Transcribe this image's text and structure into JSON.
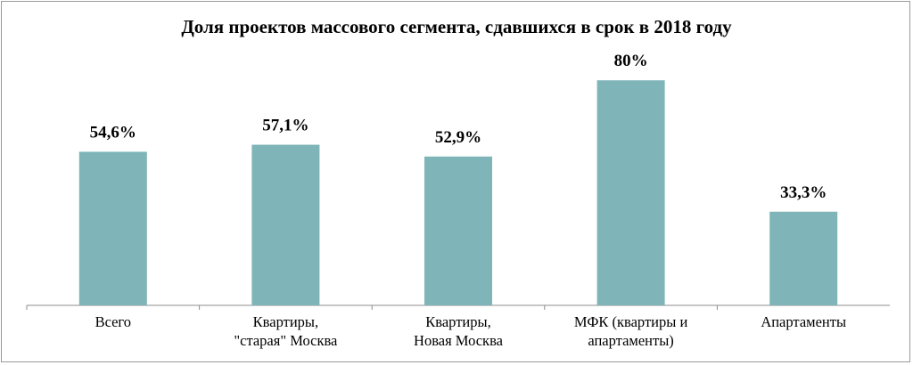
{
  "chart_data": {
    "type": "bar",
    "title": "Доля проектов массового сегмента, сдавшихся в срок в 2018 году",
    "categories": [
      [
        "Всего"
      ],
      [
        "Квартиры,",
        "\"старая\" Москва"
      ],
      [
        "Квартиры,",
        "Новая Москва"
      ],
      [
        "МФК (квартиры и",
        "апартаменты)"
      ],
      [
        "Апартаменты"
      ]
    ],
    "values": [
      54.6,
      57.1,
      52.9,
      80,
      33.3
    ],
    "value_labels": [
      "54,6%",
      "57,1%",
      "52,9%",
      "80%",
      "33,3%"
    ],
    "ylim": [
      0,
      100
    ],
    "colors": {
      "bar": "#7fb5b8",
      "axis": "#8c8c8c"
    },
    "grid": false
  }
}
